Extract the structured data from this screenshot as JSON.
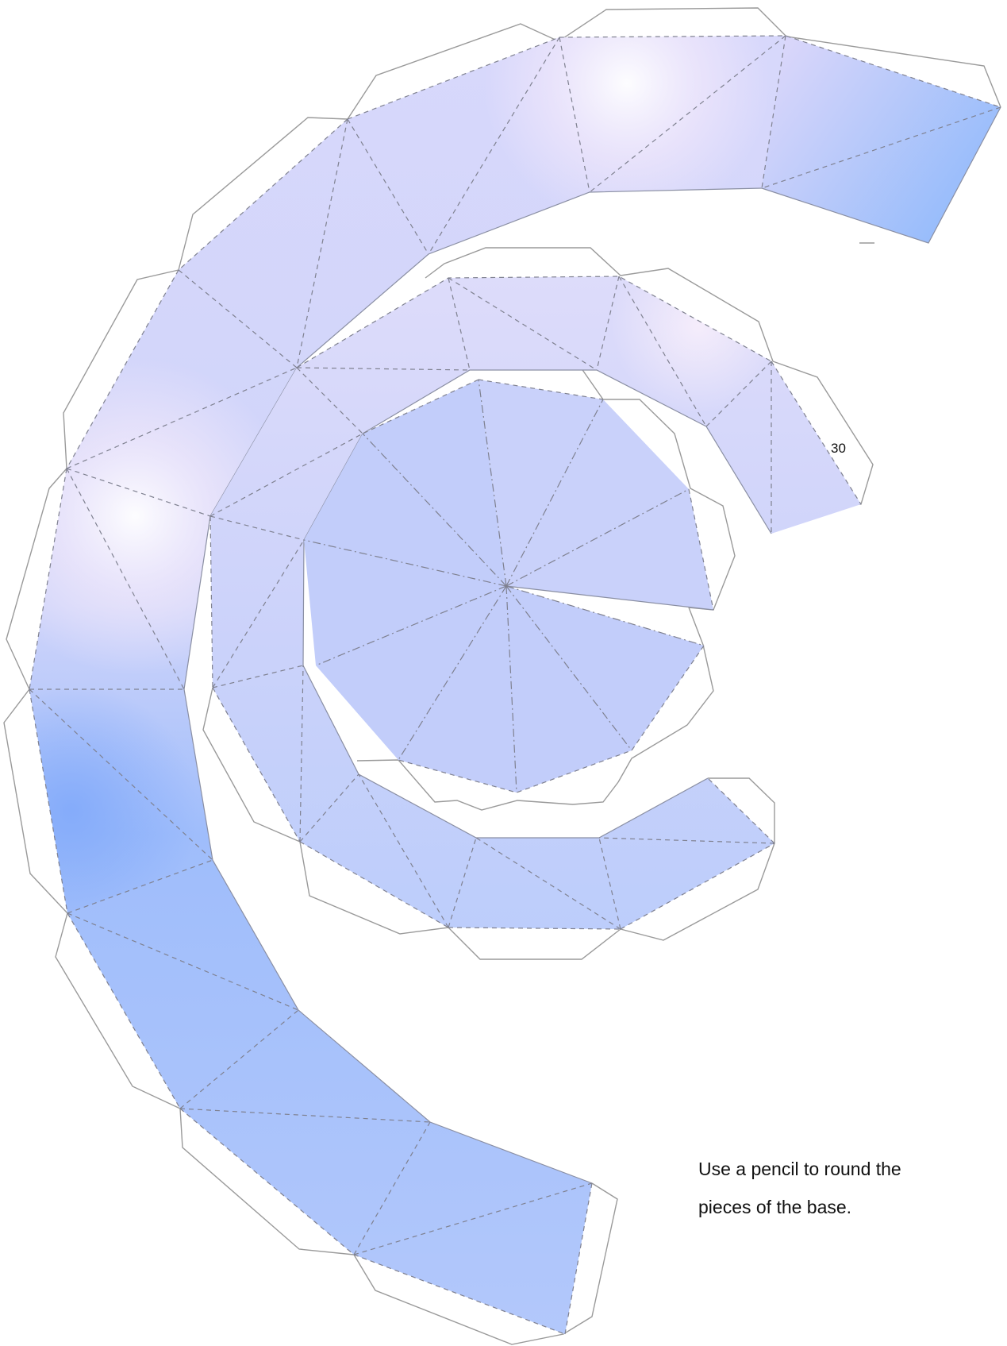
{
  "tab_number": "30",
  "instruction": {
    "line1": "Use a pencil to round the",
    "line2": "pieces of the base."
  },
  "colors": {
    "face_blue": "#aabffa",
    "face_light": "#d6d8fa",
    "highlight": "#f6ecfb",
    "glue_tab_outline": "#9a9a9a",
    "fold_line": "#7f8190",
    "text": "#111111"
  }
}
